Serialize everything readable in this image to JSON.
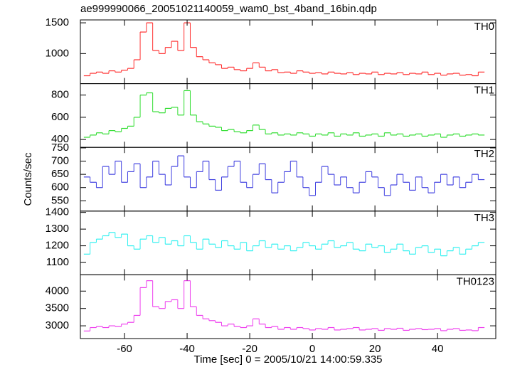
{
  "title": "ae999990066_20051021140059_wam0_bst_4band_16bin.qdp",
  "ylabel": "Counts/sec",
  "xlabel": "Time [sec] 0 = 2005/10/21 14:00:59.335",
  "chart_data": [
    {
      "type": "line",
      "label": "TH0",
      "color": "#ff3030",
      "x": [
        -72,
        -70,
        -68,
        -66,
        -64,
        -62,
        -60,
        -58,
        -56,
        -54,
        -52,
        -50,
        -48,
        -46,
        -44,
        -42,
        -40,
        -38,
        -36,
        -34,
        -32,
        -30,
        -28,
        -26,
        -24,
        -22,
        -20,
        -18,
        -16,
        -14,
        -12,
        -10,
        -8,
        -6,
        -4,
        -2,
        0,
        2,
        4,
        6,
        8,
        10,
        12,
        14,
        16,
        18,
        20,
        22,
        24,
        26,
        28,
        30,
        32,
        34,
        36,
        38,
        40,
        42,
        44,
        46,
        48,
        50,
        52,
        54
      ],
      "values": [
        640,
        680,
        700,
        680,
        720,
        700,
        730,
        760,
        900,
        1350,
        1500,
        1050,
        1000,
        1100,
        1200,
        1050,
        1500,
        1100,
        950,
        900,
        850,
        820,
        760,
        780,
        740,
        720,
        760,
        850,
        780,
        720,
        740,
        690,
        700,
        680,
        720,
        700,
        680,
        690,
        670,
        700,
        680,
        670,
        690,
        660,
        680,
        670,
        700,
        660,
        680,
        670,
        690,
        660,
        680,
        670,
        700,
        660,
        680,
        650,
        670,
        680,
        650,
        660,
        640,
        700
      ],
      "xlim": [
        -74.1,
        58.6
      ],
      "xticks": [
        -60,
        -40,
        -20,
        0,
        20,
        40
      ],
      "ylim": [
        512,
        1547
      ],
      "yticks": [
        1000,
        1500
      ]
    },
    {
      "type": "line",
      "label": "TH1",
      "color": "#30dd30",
      "x": [
        -72,
        -70,
        -68,
        -66,
        -64,
        -62,
        -60,
        -58,
        -56,
        -54,
        -52,
        -50,
        -48,
        -46,
        -44,
        -42,
        -40,
        -38,
        -36,
        -34,
        -32,
        -30,
        -28,
        -26,
        -24,
        -22,
        -20,
        -18,
        -16,
        -14,
        -12,
        -10,
        -8,
        -6,
        -4,
        -2,
        0,
        2,
        4,
        6,
        8,
        10,
        12,
        14,
        16,
        18,
        20,
        22,
        24,
        26,
        28,
        30,
        32,
        34,
        36,
        38,
        40,
        42,
        44,
        46,
        48,
        50,
        52,
        54
      ],
      "values": [
        420,
        440,
        460,
        450,
        480,
        470,
        500,
        520,
        600,
        800,
        820,
        650,
        640,
        680,
        690,
        620,
        840,
        620,
        560,
        540,
        520,
        510,
        480,
        490,
        470,
        460,
        480,
        530,
        490,
        450,
        460,
        440,
        450,
        440,
        460,
        450,
        430,
        450,
        440,
        460,
        430,
        450,
        440,
        460,
        430,
        440,
        450,
        430,
        460,
        440,
        450,
        430,
        440,
        450,
        430,
        440,
        450,
        420,
        440,
        450,
        430,
        440,
        450,
        440
      ],
      "xlim": [
        -74.1,
        58.6
      ],
      "xticks": [
        -60,
        -40,
        -20,
        0,
        20,
        40
      ],
      "ylim": [
        329,
        903
      ],
      "yticks": [
        400,
        600,
        800
      ]
    },
    {
      "type": "line",
      "label": "TH2",
      "color": "#4040e0",
      "x": [
        -72,
        -70,
        -68,
        -66,
        -64,
        -62,
        -60,
        -58,
        -56,
        -54,
        -52,
        -50,
        -48,
        -46,
        -44,
        -42,
        -40,
        -38,
        -36,
        -34,
        -32,
        -30,
        -28,
        -26,
        -24,
        -22,
        -20,
        -18,
        -16,
        -14,
        -12,
        -10,
        -8,
        -6,
        -4,
        -2,
        0,
        2,
        4,
        6,
        8,
        10,
        12,
        14,
        16,
        18,
        20,
        22,
        24,
        26,
        28,
        30,
        32,
        34,
        36,
        38,
        40,
        42,
        44,
        46,
        48,
        50,
        52,
        54
      ],
      "values": [
        640,
        620,
        600,
        680,
        650,
        700,
        620,
        660,
        690,
        600,
        640,
        700,
        650,
        610,
        680,
        720,
        640,
        600,
        660,
        700,
        630,
        590,
        640,
        680,
        700,
        620,
        600,
        650,
        690,
        630,
        580,
        620,
        660,
        700,
        640,
        600,
        570,
        620,
        680,
        650,
        610,
        640,
        600,
        580,
        620,
        660,
        640,
        600,
        570,
        610,
        650,
        620,
        590,
        640,
        600,
        580,
        620,
        650,
        610,
        640,
        600,
        620,
        650,
        630
      ],
      "xlim": [
        -74.1,
        58.6
      ],
      "xticks": [
        -60,
        -40,
        -20,
        0,
        20,
        40
      ],
      "ylim": [
        511,
        752
      ],
      "yticks": [
        550,
        600,
        650,
        700,
        750
      ]
    },
    {
      "type": "line",
      "label": "TH3",
      "color": "#30f0f0",
      "x": [
        -72,
        -70,
        -68,
        -66,
        -64,
        -62,
        -60,
        -58,
        -56,
        -54,
        -52,
        -50,
        -48,
        -46,
        -44,
        -42,
        -40,
        -38,
        -36,
        -34,
        -32,
        -30,
        -28,
        -26,
        -24,
        -22,
        -20,
        -18,
        -16,
        -14,
        -12,
        -10,
        -8,
        -6,
        -4,
        -2,
        0,
        2,
        4,
        6,
        8,
        10,
        12,
        14,
        16,
        18,
        20,
        22,
        24,
        26,
        28,
        30,
        32,
        34,
        36,
        38,
        40,
        42,
        44,
        46,
        48,
        50,
        52,
        54
      ],
      "values": [
        1150,
        1220,
        1240,
        1260,
        1280,
        1250,
        1270,
        1200,
        1180,
        1240,
        1260,
        1220,
        1250,
        1210,
        1230,
        1200,
        1260,
        1220,
        1180,
        1240,
        1210,
        1190,
        1230,
        1200,
        1180,
        1220,
        1170,
        1200,
        1230,
        1190,
        1210,
        1180,
        1200,
        1170,
        1190,
        1220,
        1200,
        1180,
        1210,
        1230,
        1190,
        1200,
        1220,
        1180,
        1170,
        1210,
        1190,
        1200,
        1160,
        1180,
        1210,
        1170,
        1150,
        1190,
        1200,
        1160,
        1180,
        1140,
        1170,
        1190,
        1150,
        1180,
        1200,
        1220
      ],
      "xlim": [
        -74.1,
        58.6
      ],
      "xticks": [
        -60,
        -40,
        -20,
        0,
        20,
        40
      ],
      "ylim": [
        1026,
        1408
      ],
      "yticks": [
        1100,
        1200,
        1300,
        1400
      ]
    },
    {
      "type": "line",
      "label": "TH0123",
      "color": "#ee40ee",
      "x": [
        -72,
        -70,
        -68,
        -66,
        -64,
        -62,
        -60,
        -58,
        -56,
        -54,
        -52,
        -50,
        -48,
        -46,
        -44,
        -42,
        -40,
        -38,
        -36,
        -34,
        -32,
        -30,
        -28,
        -26,
        -24,
        -22,
        -20,
        -18,
        -16,
        -14,
        -12,
        -10,
        -8,
        -6,
        -4,
        -2,
        0,
        2,
        4,
        6,
        8,
        10,
        12,
        14,
        16,
        18,
        20,
        22,
        24,
        26,
        28,
        30,
        32,
        34,
        36,
        38,
        40,
        42,
        44,
        46,
        48,
        50,
        52,
        54
      ],
      "values": [
        2850,
        2950,
        2980,
        2950,
        3000,
        2980,
        3050,
        3100,
        3300,
        4100,
        4300,
        3550,
        3500,
        3700,
        3750,
        3500,
        4300,
        3550,
        3300,
        3200,
        3150,
        3100,
        3000,
        3050,
        2980,
        2950,
        3000,
        3200,
        3050,
        2950,
        2980,
        2900,
        2950,
        2900,
        2950,
        2920,
        2880,
        2920,
        2900,
        2950,
        2880,
        2900,
        2920,
        2950,
        2880,
        2900,
        2920,
        2870,
        2920,
        2900,
        2930,
        2870,
        2900,
        2920,
        2890,
        2900,
        2920,
        2860,
        2900,
        2920,
        2870,
        2880,
        2860,
        2950
      ],
      "xlim": [
        -74.1,
        58.6
      ],
      "xticks": [
        -60,
        -40,
        -20,
        0,
        20,
        40
      ],
      "ylim": [
        2633,
        4469
      ],
      "yticks": [
        3000,
        3500,
        4000
      ]
    }
  ]
}
